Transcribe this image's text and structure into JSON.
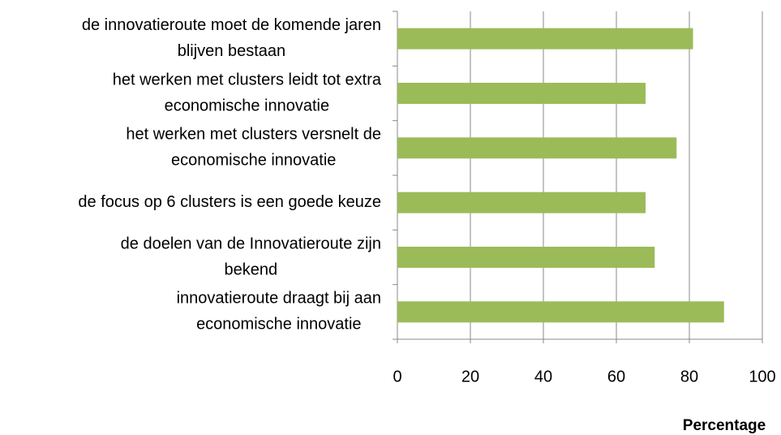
{
  "chart_data": {
    "type": "barh",
    "categories": [
      [
        "de innovatieroute moet de komende jaren",
        "blijven bestaan"
      ],
      [
        "het werken met clusters leidt tot extra",
        "economische innovatie"
      ],
      [
        "het werken met clusters versnelt de",
        "economische innovatie"
      ],
      [
        "de focus op 6 clusters is een goede keuze"
      ],
      [
        "de doelen van de Innovatieroute zijn",
        "bekend"
      ],
      [
        "innovatieroute draagt bij aan",
        "economische innovatie"
      ]
    ],
    "values": [
      81,
      68,
      76.5,
      68,
      70.5,
      89.5
    ],
    "color": "#9bbb59",
    "xlim": [
      0,
      100
    ],
    "xticks": [
      0,
      20,
      40,
      60,
      80,
      100
    ],
    "xlabel": "Percentage",
    "grid": true
  }
}
